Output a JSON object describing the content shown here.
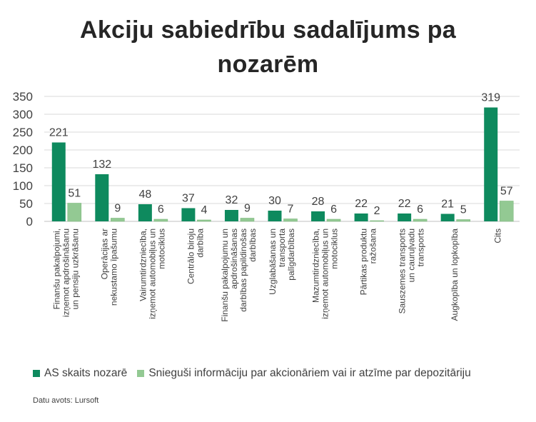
{
  "title": "Akciju sabiedrību sadalījums pa nozarēm",
  "source_note": "Datu avots: Lursoft",
  "colors": {
    "series1": "#0E8A5E",
    "series2": "#93C993",
    "axis_text": "#404040",
    "gridline": "#d9d9d9"
  },
  "chart_data": {
    "type": "bar",
    "title": "Akciju sabiedrību sadalījums pa nozarēm",
    "xlabel": "",
    "ylabel": "",
    "ylim": [
      0,
      350
    ],
    "yticks": [
      0,
      50,
      100,
      150,
      200,
      250,
      300,
      350
    ],
    "grid": true,
    "legend_position": "bottom",
    "categories": [
      "Finanšu pakalpojumi, izņemot apdrošināšanu un pensiju uzkrāšanu",
      "Operācijas ar nekustamo īpašumu",
      "Vairumtirdzniecība, izņemot automobiļus un motociklus",
      "Centrālo biroju darbība",
      "Finanšu pakalpojumu un apdrošināšanas darbības papildinošas darbības",
      "Uzglabāšanas un transporta palīgdarbības",
      "Mazumtirdzniecība, izņemot automobiļus un motociklus",
      "Pārtikas produktu ražošana",
      "Sauszemes transports un cauruļvadu transports",
      "Augkopība un lopkopība",
      "Cits"
    ],
    "series": [
      {
        "name": "AS skaits nozarē",
        "values": [
          221,
          132,
          48,
          37,
          32,
          30,
          28,
          22,
          22,
          21,
          319
        ]
      },
      {
        "name": "Snieguši informāciju par akcionāriem vai ir atzīme par depozitāriju",
        "values": [
          51,
          9,
          6,
          4,
          9,
          7,
          6,
          2,
          6,
          5,
          57
        ]
      }
    ]
  }
}
